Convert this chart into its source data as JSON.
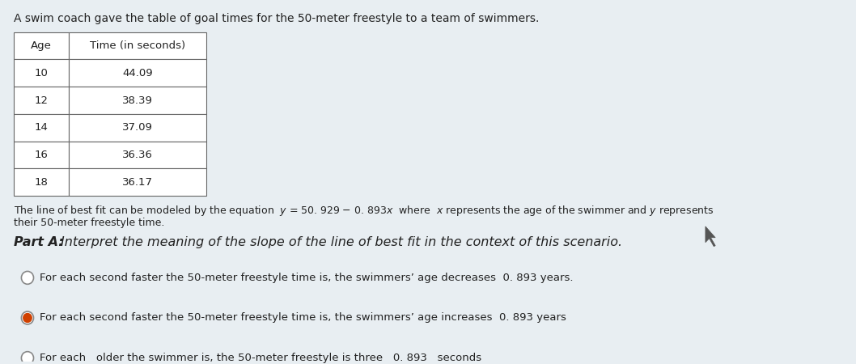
{
  "title": "A swim coach gave the table of goal times for the 50-meter freestyle to a team of swimmers.",
  "table_headers": [
    "Age",
    "Time (in seconds)"
  ],
  "table_data": [
    [
      "10",
      "44.09"
    ],
    [
      "12",
      "38.39"
    ],
    [
      "14",
      "37.09"
    ],
    [
      "16",
      "36.36"
    ],
    [
      "18",
      "36.17"
    ]
  ],
  "eq_line1": "The line of best fit can be modeled by the equation  y = 50. 929 − 0. 893x  where  x represents the age of the swimmer and y represents",
  "eq_line2": "their 50-meter freestyle time.",
  "part_a_label_bold": "Part A: ",
  "part_a_label_rest": "Interpret the meaning of the slope of the line of best fit in the context of this scenario.",
  "option1": "For each second faster the 50-meter freestyle time is, the swimmers’ age decreases  0. 893 years.",
  "option2": "For each second faster the 50-meter freestyle time is, the swimmers’ age increases  0. 893 years",
  "partial_line": "For each   older the swimmer is, the 50-meter freestyle is three   0. 893   seconds",
  "bg_color": "#e8eef2",
  "table_bg": "#f0f4f8",
  "text_color": "#222222",
  "table_border": "#666666",
  "radio_color": "#888888",
  "selected_fill": "#d04000"
}
